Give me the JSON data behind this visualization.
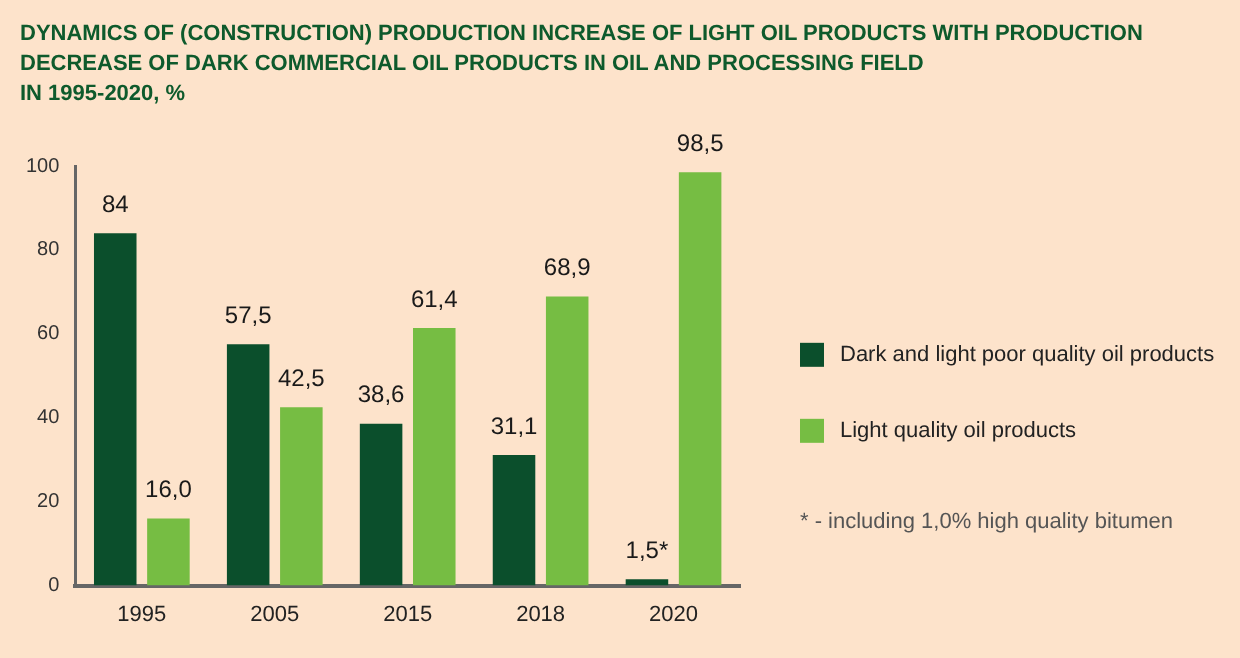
{
  "chart_data": {
    "type": "bar",
    "title": "DYNAMICS OF (CONSTRUCTION) PRODUCTION INCREASE OF LIGHT OIL PRODUCTS WITH PRODUCTION\nDECREASE OF DARK COMMERCIAL OIL PRODUCTS IN OIL AND PROCESSING FIELD\nIN 1995-2020, %",
    "categories": [
      "1995",
      "2005",
      "2015",
      "2018",
      "2020"
    ],
    "series": [
      {
        "name": "Dark and light poor quality oil products",
        "color": "#0b4f2c",
        "values": [
          84,
          57.5,
          38.6,
          31.1,
          1.5
        ],
        "value_labels": [
          "84",
          "57,5",
          "38,6",
          "31,1",
          "1,5*"
        ]
      },
      {
        "name": "Light quality oil products",
        "color": "#76bd43",
        "values": [
          16.0,
          42.5,
          61.4,
          68.9,
          98.5
        ],
        "value_labels": [
          "16,0",
          "42,5",
          "61,4",
          "68,9",
          "98,5"
        ]
      }
    ],
    "ylim": [
      0,
      100
    ],
    "yticks": [
      0,
      20,
      40,
      60,
      80,
      100
    ],
    "grid": false,
    "legend": "right",
    "annotations": [
      "* - including 1,0% high quality bitumen"
    ]
  }
}
